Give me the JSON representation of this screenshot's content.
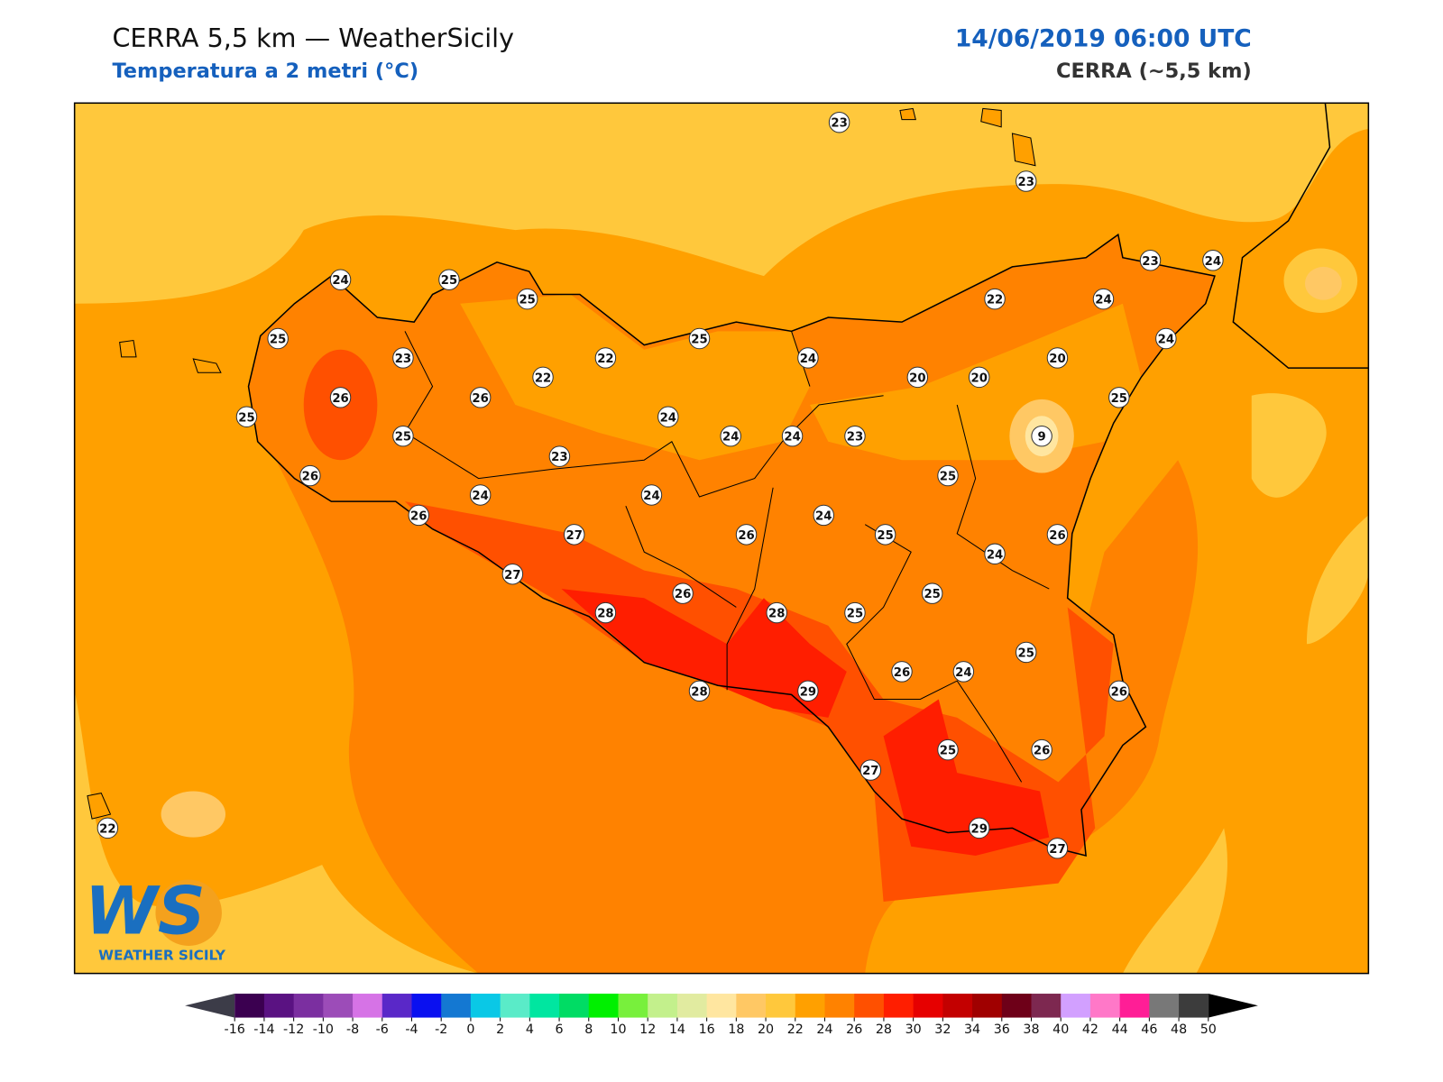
{
  "header": {
    "title": "CERRA 5,5 km — WeatherSicily",
    "subtitle": "Temperatura a 2 metri (°C)",
    "datetime": "14/06/2019 06:00 UTC",
    "model": "CERRA (~5,5 km)"
  },
  "stations": [
    23,
    23,
    24,
    25,
    25,
    23,
    24,
    25,
    22,
    24,
    23,
    22,
    25,
    24,
    22,
    20,
    20,
    20,
    24,
    26,
    26,
    25,
    25,
    24,
    25,
    24,
    24,
    23,
    9,
    23,
    26,
    25,
    24,
    24,
    26,
    24,
    27,
    26,
    25,
    26,
    24,
    27,
    26,
    25,
    28,
    28,
    25,
    25,
    26,
    24,
    26,
    28,
    29,
    25,
    26,
    27,
    29,
    27,
    22
  ],
  "colorbar": {
    "ticks": [
      -16,
      -14,
      -12,
      -10,
      -8,
      -6,
      -4,
      -2,
      0,
      2,
      4,
      6,
      8,
      10,
      12,
      14,
      16,
      18,
      20,
      22,
      24,
      26,
      28,
      30,
      32,
      34,
      36,
      38,
      40,
      42,
      44,
      46,
      48,
      50
    ],
    "colors": [
      "#3b0050",
      "#5a1282",
      "#7b2fa0",
      "#9c4cb8",
      "#d673e6",
      "#5a28c8",
      "#0a10f0",
      "#1478d2",
      "#0ac8e6",
      "#5aebc8",
      "#00e6a0",
      "#00dc64",
      "#00f000",
      "#78f03c",
      "#c3f08c",
      "#e1eba0",
      "#ffe6a0",
      "#ffc864",
      "#ffc83c",
      "#ffa000",
      "#ff8200",
      "#ff5000",
      "#ff1e00",
      "#e60000",
      "#c30000",
      "#a00000",
      "#6e0018",
      "#7d2850",
      "#d2a0ff",
      "#ff78c8",
      "#ff1e96",
      "#787878",
      "#3c3c3c"
    ],
    "under": "#3c3c48",
    "over": "#000000"
  },
  "logo": {
    "mark": "WS",
    "name": "WEATHER SICILY"
  }
}
